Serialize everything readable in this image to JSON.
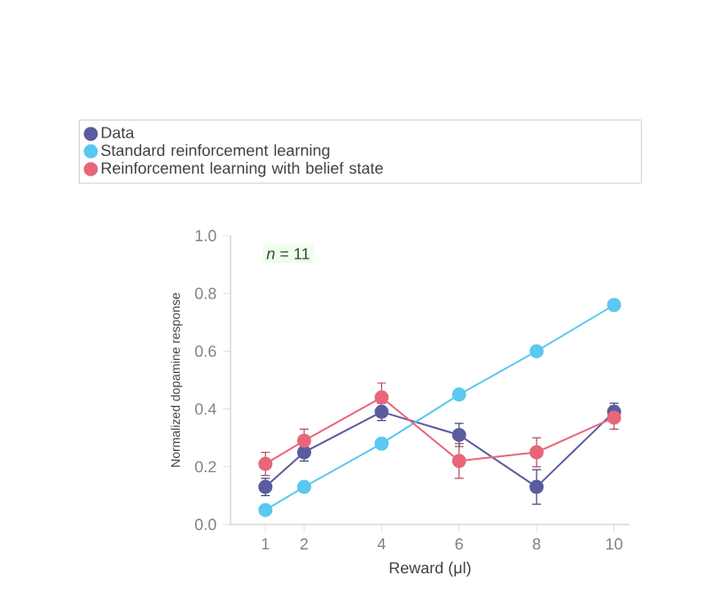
{
  "chart_data": {
    "type": "line",
    "xlabel": "Reward (μl)",
    "ylabel": "Normalized dopamine response",
    "x": [
      1,
      2,
      4,
      6,
      8,
      10
    ],
    "series": [
      {
        "name": "Data",
        "color": "#5a5c9e",
        "values": [
          0.13,
          0.25,
          0.39,
          0.31,
          0.13,
          0.39
        ],
        "errors": [
          0.03,
          0.03,
          0.03,
          0.04,
          0.06,
          0.03
        ]
      },
      {
        "name": "Standard reinforcement learning",
        "color": "#5bc8f0",
        "values": [
          0.05,
          0.13,
          0.28,
          0.45,
          0.6,
          0.76
        ]
      },
      {
        "name": "Reinforcement learning with belief state",
        "color": "#e8667a",
        "values": [
          0.21,
          0.29,
          0.44,
          0.22,
          0.25,
          0.37
        ],
        "errors": [
          0.04,
          0.04,
          0.05,
          0.06,
          0.05,
          0.04
        ]
      }
    ],
    "xlim": [
      0.1,
      10.4
    ],
    "ylim": [
      0,
      1
    ],
    "xticks": [
      1,
      2,
      4,
      6,
      8,
      10
    ],
    "yticks": [
      {
        "value": 0,
        "label": "0.0"
      },
      0.2,
      0.4,
      0.6,
      0.8,
      {
        "value": 1,
        "label": "1.0"
      }
    ],
    "annotations": [
      "*n* = 11"
    ],
    "marker": "circle",
    "legend": "top",
    "grid": false
  }
}
